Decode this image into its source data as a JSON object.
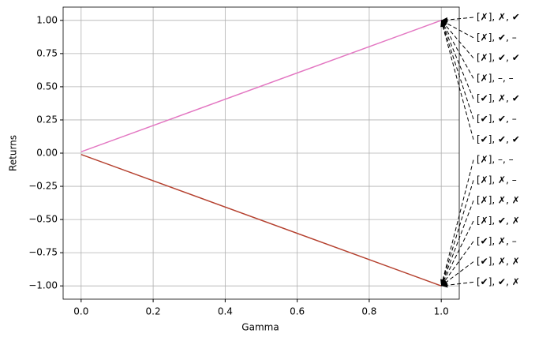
{
  "chart_data": {
    "type": "line",
    "x_label": "Gamma",
    "y_label": "Returns",
    "x": [
      0,
      1
    ],
    "series": [
      {
        "color": "#e377c2",
        "values": [
          0.01,
          1
        ]
      },
      {
        "color": "#b5412f",
        "values": [
          -0.01,
          -1
        ]
      }
    ],
    "xlim": [
      -0.05,
      1.05
    ],
    "ylim": [
      -1.1,
      1.1
    ],
    "xticks": [
      {
        "value": 0,
        "label": "0.0"
      },
      {
        "value": 0.2,
        "label": "0.2"
      },
      {
        "value": 0.4,
        "label": "0.4"
      },
      {
        "value": 0.6,
        "label": "0.6"
      },
      {
        "value": 0.8,
        "label": "0.8"
      },
      {
        "value": 1,
        "label": "1.0"
      }
    ],
    "yticks": [
      {
        "value": -1,
        "label": "−1.00"
      },
      {
        "value": -0.75,
        "label": "−0.75"
      },
      {
        "value": -0.5,
        "label": "−0.50"
      },
      {
        "value": -0.25,
        "label": "−0.25"
      },
      {
        "value": 0,
        "label": "0.00"
      },
      {
        "value": 0.25,
        "label": "0.25"
      },
      {
        "value": 0.5,
        "label": "0.50"
      },
      {
        "value": 0.75,
        "label": "0.75"
      },
      {
        "value": 1,
        "label": "1.00"
      }
    ],
    "grid": true,
    "annotations": [
      {
        "text": "[✗], ✗, ✔",
        "xy": [
          1,
          1
        ]
      },
      {
        "text": "[✗], ✔, –",
        "xy": [
          1,
          1
        ]
      },
      {
        "text": "[✗], ✔, ✔",
        "xy": [
          1,
          1
        ]
      },
      {
        "text": "[✗], –, –",
        "xy": [
          1,
          1
        ]
      },
      {
        "text": "[✔], ✗, ✔",
        "xy": [
          1,
          1
        ]
      },
      {
        "text": "[✔], ✔, –",
        "xy": [
          1,
          1
        ]
      },
      {
        "text": "[✔], ✔, ✔",
        "xy": [
          1,
          1
        ]
      },
      {
        "text": "[✗], –, –",
        "xy": [
          1,
          -1
        ]
      },
      {
        "text": "[✗], ✗, –",
        "xy": [
          1,
          -1
        ]
      },
      {
        "text": "[✗], ✗, ✗",
        "xy": [
          1,
          -1
        ]
      },
      {
        "text": "[✗], ✔, ✗",
        "xy": [
          1,
          -1
        ]
      },
      {
        "text": "[✔], ✗, –",
        "xy": [
          1,
          -1
        ]
      },
      {
        "text": "[✔], ✗, ✗",
        "xy": [
          1,
          -1
        ]
      },
      {
        "text": "[✔], ✔, ✗",
        "xy": [
          1,
          -1
        ]
      }
    ]
  }
}
